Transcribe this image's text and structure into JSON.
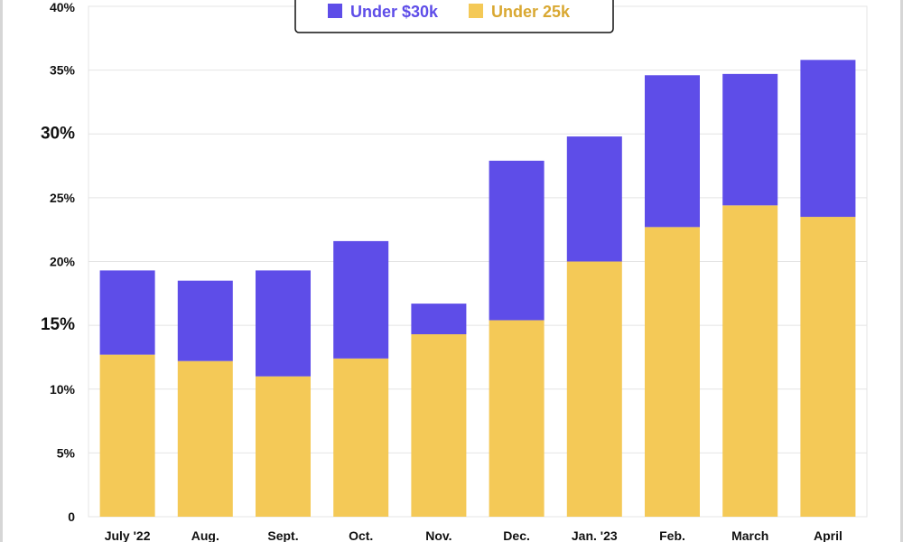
{
  "chart_data": {
    "type": "bar",
    "stacked": true,
    "title": "",
    "xlabel": "",
    "ylabel": "",
    "ylim": [
      0,
      40
    ],
    "yticks": [
      {
        "value": 0,
        "label": "0"
      },
      {
        "value": 5,
        "label": "5%"
      },
      {
        "value": 10,
        "label": "10%"
      },
      {
        "value": 15,
        "label": "15%"
      },
      {
        "value": 20,
        "label": "20%"
      },
      {
        "value": 25,
        "label": "25%"
      },
      {
        "value": 30,
        "label": "30%"
      },
      {
        "value": 35,
        "label": "35%"
      },
      {
        "value": 40,
        "label": "40%"
      }
    ],
    "categories": [
      "July '22",
      "Aug.",
      "Sept.",
      "Oct.",
      "Nov.",
      "Dec.",
      "Jan. '23",
      "Feb.",
      "March",
      "April"
    ],
    "series": [
      {
        "name": "Under 25k",
        "color": "#f4c957",
        "values": [
          12.7,
          12.2,
          11.0,
          12.4,
          14.3,
          15.4,
          20.0,
          22.7,
          24.4,
          23.5
        ]
      },
      {
        "name": "Under $30k",
        "color": "#5e4de8",
        "values": [
          6.6,
          6.3,
          8.3,
          9.2,
          2.4,
          12.5,
          9.8,
          11.9,
          10.3,
          12.3
        ]
      }
    ],
    "totals": [
      19.3,
      18.5,
      19.3,
      21.6,
      16.7,
      27.9,
      29.8,
      34.6,
      34.7,
      35.8
    ],
    "legend": {
      "position": "top-center",
      "items": [
        {
          "label": "Under $30k",
          "color": "#5e4de8",
          "text_color": "#5e4de8"
        },
        {
          "label": "Under 25k",
          "color": "#f4c957",
          "text_color": "#d9a832"
        }
      ]
    },
    "grid": true,
    "grid_color": "#e4e4e4"
  }
}
